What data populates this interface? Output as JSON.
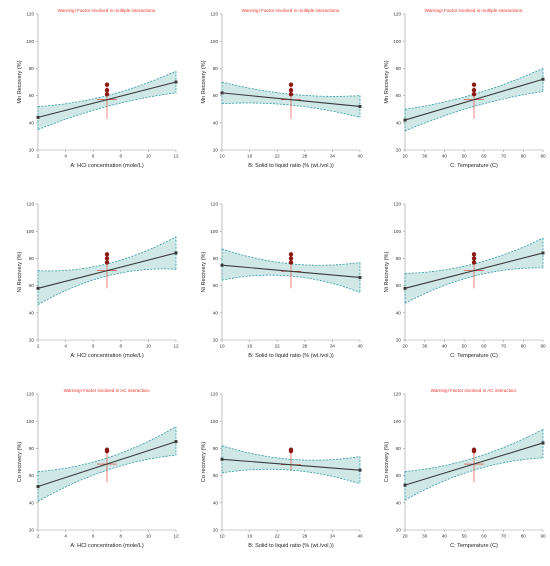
{
  "colors": {
    "band_fill": "#cfe8e6",
    "band_edge": "#2f9aa6",
    "fit_line": "#3a3a3a",
    "center_line": "#e8322b",
    "point": "#8b1a14",
    "warning_text": "#e8322b"
  },
  "chart_data": [
    {
      "type": "line",
      "title": "",
      "warning": "Warning! Factor involved in multiple interactions.",
      "xlabel": "A: HCl concentration (mole/L)",
      "ylabel": "Mn Recovery (%)",
      "xlim": [
        2,
        12
      ],
      "ylim": [
        20,
        120
      ],
      "xticks": [
        "2",
        "4",
        "6",
        "8",
        "10",
        "12"
      ],
      "yticks": [
        "20",
        "40",
        "60",
        "80",
        "100",
        "120"
      ],
      "fit": {
        "x": [
          2,
          12
        ],
        "y": [
          44,
          70
        ]
      },
      "band": {
        "x": [
          2,
          7,
          12
        ],
        "lower": [
          35,
          52,
          62
        ],
        "upper": [
          52,
          60,
          78
        ]
      },
      "center_x": 7,
      "center_low": 43,
      "points": [
        {
          "x": 7,
          "y": 68
        },
        {
          "x": 7,
          "y": 64
        },
        {
          "x": 7,
          "y": 61
        }
      ]
    },
    {
      "type": "line",
      "title": "",
      "warning": "Warning! Factor involved in multiple interactions.",
      "xlabel": "B: Solid to liquid ratio (% (wt./vol.))",
      "ylabel": "Mn Recovery (%)",
      "xlim": [
        10,
        40
      ],
      "ylim": [
        20,
        120
      ],
      "xticks": [
        "10",
        "16",
        "22",
        "28",
        "34",
        "40"
      ],
      "yticks": [
        "20",
        "40",
        "60",
        "80",
        "100",
        "120"
      ],
      "fit": {
        "x": [
          10,
          40
        ],
        "y": [
          62,
          52
        ]
      },
      "band": {
        "x": [
          10,
          25,
          40
        ],
        "lower": [
          54,
          53,
          44
        ],
        "upper": [
          70,
          61,
          60
        ]
      },
      "center_x": 25,
      "center_low": 43,
      "points": [
        {
          "x": 25,
          "y": 68
        },
        {
          "x": 25,
          "y": 64
        },
        {
          "x": 25,
          "y": 61
        }
      ]
    },
    {
      "type": "line",
      "title": "",
      "warning": "Warning! Factor involved in multiple interactions.",
      "xlabel": "C: Temperature (C)",
      "ylabel": "Mn Recovery (%)",
      "xlim": [
        20,
        90
      ],
      "ylim": [
        20,
        120
      ],
      "xticks": [
        "20",
        "30",
        "40",
        "50",
        "60",
        "70",
        "80",
        "90"
      ],
      "yticks": [
        "20",
        "40",
        "60",
        "80",
        "100",
        "120"
      ],
      "fit": {
        "x": [
          20,
          90
        ],
        "y": [
          42,
          72
        ]
      },
      "band": {
        "x": [
          20,
          55,
          90
        ],
        "lower": [
          34,
          52,
          63
        ],
        "upper": [
          50,
          61,
          80
        ]
      },
      "center_x": 55,
      "center_low": 43,
      "points": [
        {
          "x": 55,
          "y": 68
        },
        {
          "x": 55,
          "y": 64
        },
        {
          "x": 55,
          "y": 61
        }
      ]
    },
    {
      "type": "line",
      "title": "",
      "warning": "",
      "xlabel": "A: HCl concentration (mole/L)",
      "ylabel": "Ni Recovery (%)",
      "xlim": [
        2,
        12
      ],
      "ylim": [
        20,
        120
      ],
      "xticks": [
        "2",
        "4",
        "6",
        "8",
        "10",
        "12"
      ],
      "yticks": [
        "20",
        "40",
        "60",
        "80",
        "100",
        "120"
      ],
      "fit": {
        "x": [
          2,
          12
        ],
        "y": [
          58,
          84
        ]
      },
      "band": {
        "x": [
          2,
          7,
          12
        ],
        "lower": [
          46,
          67,
          72
        ],
        "upper": [
          71,
          76,
          96
        ]
      },
      "center_x": 7,
      "center_low": 58,
      "points": [
        {
          "x": 7,
          "y": 83
        },
        {
          "x": 7,
          "y": 80
        },
        {
          "x": 7,
          "y": 77
        }
      ]
    },
    {
      "type": "line",
      "title": "",
      "warning": "",
      "xlabel": "B: Solid to liquid ratio (% (wt./vol.))",
      "ylabel": "Ni Recovery (%)",
      "xlim": [
        10,
        40
      ],
      "ylim": [
        20,
        120
      ],
      "xticks": [
        "10",
        "16",
        "22",
        "28",
        "34",
        "40"
      ],
      "yticks": [
        "20",
        "40",
        "60",
        "80",
        "100",
        "120"
      ],
      "fit": {
        "x": [
          10,
          40
        ],
        "y": [
          75,
          66
        ]
      },
      "band": {
        "x": [
          10,
          25,
          40
        ],
        "lower": [
          64,
          67,
          55
        ],
        "upper": [
          87,
          76,
          77
        ]
      },
      "center_x": 25,
      "center_low": 58,
      "points": [
        {
          "x": 25,
          "y": 83
        },
        {
          "x": 25,
          "y": 80
        },
        {
          "x": 25,
          "y": 77
        }
      ]
    },
    {
      "type": "line",
      "title": "",
      "warning": "",
      "xlabel": "C: Temperature (C)",
      "ylabel": "Ni Recovery (%)",
      "xlim": [
        20,
        90
      ],
      "ylim": [
        20,
        120
      ],
      "xticks": [
        "20",
        "30",
        "40",
        "50",
        "60",
        "70",
        "80",
        "90"
      ],
      "yticks": [
        "20",
        "40",
        "60",
        "80",
        "100",
        "120"
      ],
      "fit": {
        "x": [
          20,
          90
        ],
        "y": [
          58,
          84
        ]
      },
      "band": {
        "x": [
          20,
          55,
          90
        ],
        "lower": [
          47,
          67,
          73
        ],
        "upper": [
          69,
          76,
          95
        ]
      },
      "center_x": 55,
      "center_low": 58,
      "points": [
        {
          "x": 55,
          "y": 83
        },
        {
          "x": 55,
          "y": 80
        },
        {
          "x": 55,
          "y": 77
        }
      ]
    },
    {
      "type": "line",
      "title": "",
      "warning": "Warning! Factor involved in AC interaction.",
      "xlabel": "A: HCl concentration (mole/L)",
      "ylabel": "Co recovery (%)",
      "xlim": [
        2,
        12
      ],
      "ylim": [
        20,
        120
      ],
      "xticks": [
        "2",
        "4",
        "6",
        "8",
        "10",
        "12"
      ],
      "yticks": [
        "20",
        "40",
        "60",
        "80",
        "100",
        "120"
      ],
      "fit": {
        "x": [
          2,
          12
        ],
        "y": [
          52,
          85
        ]
      },
      "band": {
        "x": [
          2,
          7,
          12
        ],
        "lower": [
          41,
          64,
          75
        ],
        "upper": [
          63,
          73,
          96
        ]
      },
      "center_x": 7,
      "center_low": 55,
      "points": [
        {
          "x": 7,
          "y": 79
        },
        {
          "x": 7,
          "y": 78
        }
      ]
    },
    {
      "type": "line",
      "title": "",
      "warning": "",
      "xlabel": "B: Solid to liquid ratio (% (wt./vol.))",
      "ylabel": "Co recovery (%)",
      "xlim": [
        10,
        40
      ],
      "ylim": [
        20,
        120
      ],
      "xticks": [
        "10",
        "16",
        "22",
        "28",
        "34",
        "40"
      ],
      "yticks": [
        "20",
        "40",
        "60",
        "80",
        "100",
        "120"
      ],
      "fit": {
        "x": [
          10,
          40
        ],
        "y": [
          72,
          64
        ]
      },
      "band": {
        "x": [
          10,
          25,
          40
        ],
        "lower": [
          62,
          64,
          54
        ],
        "upper": [
          82,
          72,
          74
        ]
      },
      "center_x": 25,
      "center_low": 64,
      "points": [
        {
          "x": 25,
          "y": 79
        },
        {
          "x": 25,
          "y": 78
        }
      ]
    },
    {
      "type": "line",
      "title": "",
      "warning": "Warning! Factor involved in AC interaction.",
      "xlabel": "C: Temperature (C)",
      "ylabel": "Co recovery (%)",
      "xlim": [
        20,
        90
      ],
      "ylim": [
        20,
        120
      ],
      "xticks": [
        "20",
        "30",
        "40",
        "50",
        "60",
        "70",
        "80",
        "90"
      ],
      "yticks": [
        "20",
        "40",
        "60",
        "80",
        "100",
        "120"
      ],
      "fit": {
        "x": [
          20,
          90
        ],
        "y": [
          53,
          84
        ]
      },
      "band": {
        "x": [
          20,
          55,
          90
        ],
        "lower": [
          42,
          64,
          73
        ],
        "upper": [
          63,
          73,
          94
        ]
      },
      "center_x": 55,
      "center_low": 55,
      "points": [
        {
          "x": 55,
          "y": 79
        },
        {
          "x": 55,
          "y": 78
        }
      ]
    }
  ]
}
